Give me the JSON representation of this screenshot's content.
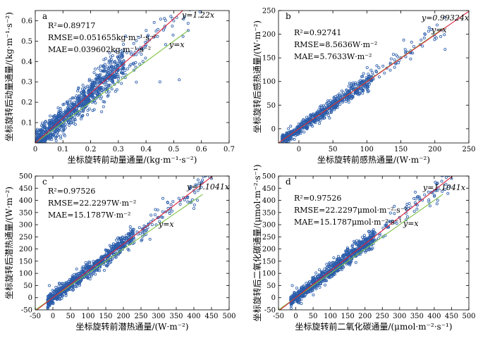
{
  "chart_data": [
    {
      "type": "scatter",
      "panel_letter": "a",
      "xlabel": "坐标旋转前动量通量/(kg·m⁻¹·s⁻²)",
      "ylabel": "坐标旋转后动量通量/(kg·m⁻¹·s⁻²)",
      "xlim": [
        0,
        0.7
      ],
      "ylim": [
        0,
        0.65
      ],
      "xticks": [
        0,
        0.1,
        0.2,
        0.3,
        0.4,
        0.5,
        0.6,
        0.7
      ],
      "yticks": [
        0.1,
        0.2,
        0.3,
        0.4,
        0.5,
        0.6
      ],
      "xtick_labels": [
        "0",
        "0.1",
        "0.2",
        "0.3",
        "0.4",
        "0.5",
        "0.6",
        "0.7"
      ],
      "ytick_labels": [
        "0.1",
        "0.2",
        "0.3",
        "0.4",
        "0.5",
        "0.6"
      ],
      "stats": [
        "R²=0.89717",
        "RMSE=0.051655kg·m⁻¹·s⁻²",
        "MAE=0.039602kg·m⁻¹·s⁻²"
      ],
      "fit_label": "y=1.22x",
      "identity_label": "y=x",
      "fit_slope": 1.22,
      "n_points": 1000,
      "scatter_sd": 0.045,
      "x_main_max": 0.32,
      "x_tail_max": 0.6,
      "sample_points": [
        [
          0.02,
          0.03
        ],
        [
          0.1,
          0.12
        ],
        [
          0.2,
          0.25
        ],
        [
          0.3,
          0.36
        ],
        [
          0.4,
          0.48
        ],
        [
          0.5,
          0.6
        ],
        [
          0.55,
          0.66
        ],
        [
          0.45,
          0.3
        ],
        [
          0.52,
          0.31
        ]
      ],
      "grid": false
    },
    {
      "type": "scatter",
      "panel_letter": "b",
      "xlabel": "坐标旋转前感热通量/(W·m⁻²)",
      "ylabel": "坐标旋转后感热通量/(W·m⁻²)",
      "xlim": [
        -30,
        250
      ],
      "ylim": [
        -30,
        250
      ],
      "xticks": [
        0,
        50,
        100,
        150,
        200,
        250
      ],
      "yticks": [
        0,
        50,
        100,
        150,
        200,
        250
      ],
      "xtick_labels": [
        "0",
        "50",
        "100",
        "150",
        "200",
        "250"
      ],
      "ytick_labels": [
        "0",
        "50",
        "100",
        "150",
        "200",
        "250"
      ],
      "stats": [
        "R²=0.92741",
        "RMSE=8.5636W·m⁻²",
        "MAE=5.7633W·m⁻²"
      ],
      "fit_label": "y=0.99324x",
      "identity_label": "y=x",
      "fit_slope": 0.99324,
      "n_points": 700,
      "scatter_sd": 9,
      "x_min": -25,
      "x_main_max": 110,
      "x_tail_max": 215,
      "sample_points": [
        [
          -20,
          -22
        ],
        [
          0,
          2
        ],
        [
          50,
          48
        ],
        [
          100,
          98
        ],
        [
          150,
          150
        ],
        [
          200,
          195
        ],
        [
          215,
          168
        ]
      ],
      "grid": false
    },
    {
      "type": "scatter",
      "panel_letter": "c",
      "xlabel": "坐标旋转前潜热通量/(W·m⁻²)",
      "ylabel": "坐标旋转后潜热通量/(W·m⁻²)",
      "xlim": [
        -50,
        500
      ],
      "ylim": [
        -50,
        500
      ],
      "xticks": [
        -50,
        0,
        50,
        100,
        150,
        200,
        250,
        300,
        350,
        400,
        450,
        500
      ],
      "yticks": [
        -50,
        0,
        50,
        100,
        150,
        200,
        250,
        300,
        350,
        400,
        450,
        500
      ],
      "xtick_labels": [
        "-50",
        "0",
        "50",
        "100",
        "150",
        "200",
        "250",
        "300",
        "350",
        "400",
        "450",
        "500"
      ],
      "ytick_labels": [
        "-50",
        "0",
        "50",
        "100",
        "150",
        "200",
        "250",
        "300",
        "350",
        "400",
        "450",
        "500"
      ],
      "stats": [
        "R²=0.97526",
        "RMSE=22.2297W·m⁻²",
        "MAE=15.1787W·m⁻²"
      ],
      "fit_label": "y=1.1041x",
      "identity_label": "y=x",
      "fit_slope": 1.1041,
      "n_points": 900,
      "scatter_sd": 20,
      "x_min": -15,
      "x_main_max": 230,
      "x_tail_max": 450,
      "sample_points": [
        [
          -10,
          50
        ],
        [
          0,
          0
        ],
        [
          100,
          110
        ],
        [
          200,
          220
        ],
        [
          300,
          330
        ],
        [
          400,
          440
        ],
        [
          450,
          490
        ],
        [
          410,
          400
        ]
      ],
      "grid": false
    },
    {
      "type": "scatter",
      "panel_letter": "d",
      "xlabel": "坐标旋转前二氧化碳通量/(μmol·m⁻²·s⁻¹)",
      "ylabel": "坐标旋转后二氧化碳通量/(μmol·m⁻²·s⁻¹)",
      "xlim": [
        -50,
        500
      ],
      "ylim": [
        -50,
        500
      ],
      "xticks": [
        -50,
        0,
        50,
        100,
        150,
        200,
        250,
        300,
        350,
        400,
        450,
        500
      ],
      "yticks": [
        -50,
        0,
        50,
        100,
        150,
        200,
        250,
        300,
        350,
        400,
        450,
        500
      ],
      "xtick_labels": [
        "-50",
        "0",
        "50",
        "100",
        "150",
        "200",
        "250",
        "300",
        "350",
        "400",
        "450",
        "500"
      ],
      "ytick_labels": [
        "-50",
        "0",
        "50",
        "100",
        "150",
        "200",
        "250",
        "300",
        "350",
        "400",
        "450",
        "500"
      ],
      "stats": [
        "R²=0.97526",
        "RMSE=22.2297μmol·m⁻²·s⁻¹",
        "MAE=15.1787μmol·m⁻²·s⁻¹"
      ],
      "fit_label": "y=1.1041x",
      "identity_label": "y=x",
      "fit_slope": 1.1041,
      "n_points": 900,
      "scatter_sd": 20,
      "x_min": -15,
      "x_main_max": 230,
      "x_tail_max": 450,
      "sample_points": [
        [
          -10,
          50
        ],
        [
          0,
          0
        ],
        [
          100,
          110
        ],
        [
          200,
          220
        ],
        [
          300,
          330
        ],
        [
          400,
          440
        ],
        [
          450,
          490
        ],
        [
          410,
          400
        ]
      ],
      "grid": false
    }
  ],
  "colors": {
    "points": "#2a5caa",
    "fit_line": "#d9223b",
    "identity_line": "#7cc242",
    "axes": "#000000"
  }
}
